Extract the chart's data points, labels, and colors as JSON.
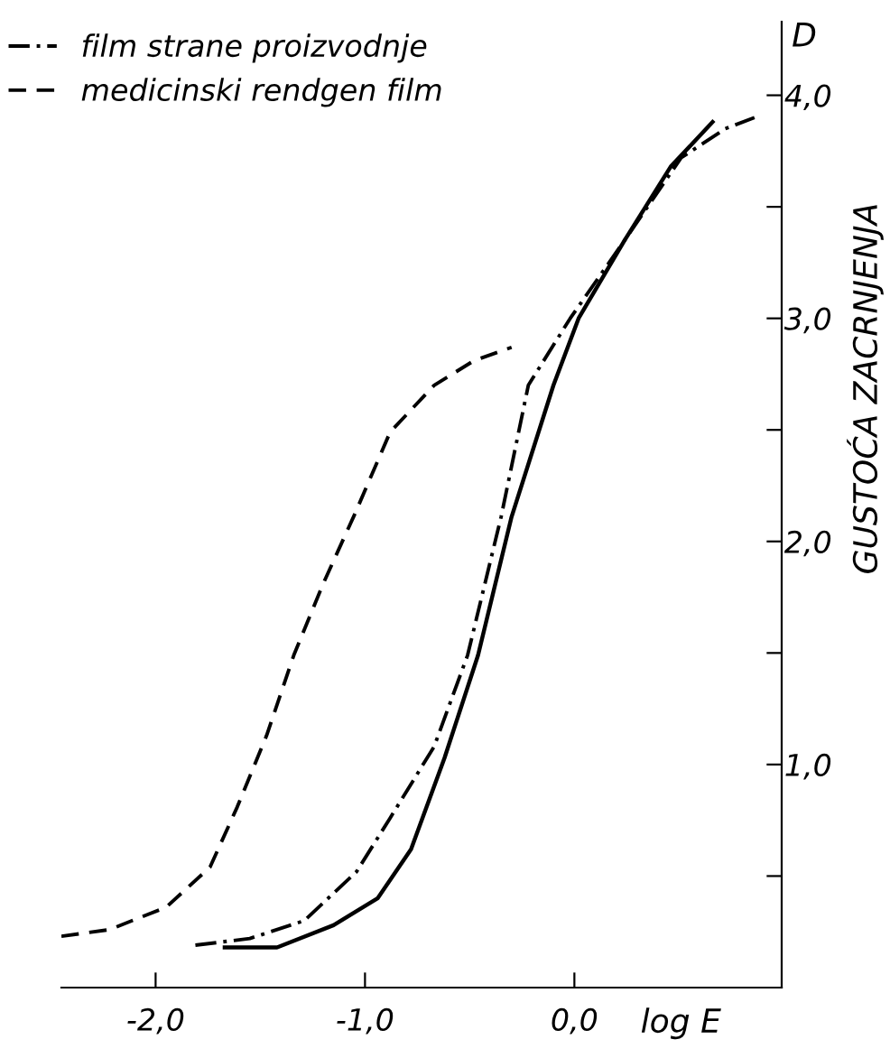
{
  "chart_data": {
    "type": "line",
    "xlabel": "log E",
    "ylabel": "GUSTOĆA ZACRNJENJA",
    "annotations": [
      "D"
    ],
    "xlim": [
      -2.45,
      0.99
    ],
    "ylim": [
      0,
      4.33
    ],
    "xticks": [
      {
        "value": -2,
        "label": "-2,0"
      },
      {
        "value": -1,
        "label": "-1,0"
      },
      {
        "value": 0,
        "label": "0,0"
      }
    ],
    "yticks": [
      {
        "value": 0.5,
        "label": null
      },
      {
        "value": 1,
        "label": "1,0"
      },
      {
        "value": 1.5,
        "label": null
      },
      {
        "value": 2,
        "label": "2,0"
      },
      {
        "value": 2.5,
        "label": null
      },
      {
        "value": 3,
        "label": "3,0"
      },
      {
        "value": 3.5,
        "label": null
      },
      {
        "value": 4,
        "label": "4,0"
      }
    ],
    "grid": false,
    "legend": "top left",
    "marker": "none",
    "series": [
      {
        "color": "#000000",
        "line_style": "solid",
        "x": [
          -1.67,
          -1.42,
          -1.15,
          -0.94,
          -0.78,
          -0.62,
          -0.46,
          -0.3,
          -0.1,
          0.02,
          0.24,
          0.46,
          0.66
        ],
        "values": [
          0.18,
          0.18,
          0.28,
          0.4,
          0.62,
          1.03,
          1.49,
          2.11,
          2.7,
          3.0,
          3.35,
          3.68,
          3.88
        ]
      },
      {
        "name": "film strane proizvodnje",
        "color": "#000000",
        "line_style": "dashdot",
        "x": [
          -1.81,
          -1.55,
          -1.29,
          -1.04,
          -0.88,
          -0.67,
          -0.51,
          -0.35,
          -0.22,
          -0.02,
          0.24,
          0.51,
          0.72,
          0.86
        ],
        "values": [
          0.19,
          0.22,
          0.3,
          0.52,
          0.76,
          1.08,
          1.49,
          2.11,
          2.7,
          3.0,
          3.35,
          3.72,
          3.85,
          3.9
        ]
      },
      {
        "name": "medicinski rendgen film",
        "color": "#000000",
        "line_style": "dashed",
        "x": [
          -2.45,
          -2.22,
          -1.95,
          -1.74,
          -1.61,
          -1.47,
          -1.34,
          -1.2,
          -1.05,
          -0.88,
          -0.67,
          -0.48,
          -0.3
        ],
        "values": [
          0.23,
          0.26,
          0.36,
          0.54,
          0.81,
          1.13,
          1.49,
          1.81,
          2.12,
          2.49,
          2.7,
          2.81,
          2.87
        ]
      }
    ]
  }
}
